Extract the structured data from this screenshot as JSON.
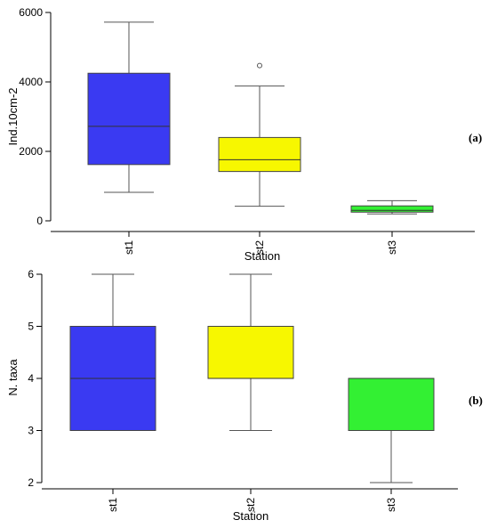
{
  "chart_data": [
    {
      "panel": "(a)",
      "type": "box",
      "xlabel": "Station",
      "ylabel": "Ind.10cm-2",
      "ylim": [
        0,
        6000
      ],
      "yticks": [
        0,
        2000,
        4000,
        6000
      ],
      "categories": [
        "st1",
        "st2",
        "st3"
      ],
      "boxes": [
        {
          "category": "st1",
          "min": 820,
          "q1": 1620,
          "median": 2720,
          "q3": 4250,
          "max": 5720,
          "outliers": [],
          "color": "#3a3af2"
        },
        {
          "category": "st2",
          "min": 420,
          "q1": 1420,
          "median": 1760,
          "q3": 2400,
          "max": 3880,
          "outliers": [
            4470
          ],
          "color": "#f7f700"
        },
        {
          "category": "st3",
          "min": 200,
          "q1": 250,
          "median": 300,
          "q3": 430,
          "max": 580,
          "outliers": [],
          "color": "#33f033"
        }
      ]
    },
    {
      "panel": "(b)",
      "type": "box",
      "xlabel": "Station",
      "ylabel": "N. taxa",
      "ylim": [
        2,
        6
      ],
      "yticks": [
        2,
        3,
        4,
        5,
        6
      ],
      "categories": [
        "st1",
        "st2",
        "st3"
      ],
      "boxes": [
        {
          "category": "st1",
          "min": 3,
          "q1": 3,
          "median": 4,
          "q3": 5,
          "max": 6,
          "outliers": [],
          "color": "#3a3af2"
        },
        {
          "category": "st2",
          "min": 3,
          "q1": 4,
          "median": 4,
          "q3": 5,
          "max": 6,
          "outliers": [],
          "color": "#f7f700"
        },
        {
          "category": "st3",
          "min": 2,
          "q1": 3,
          "median": 4,
          "q3": 4,
          "max": 4,
          "outliers": [],
          "color": "#33f033"
        }
      ]
    }
  ]
}
